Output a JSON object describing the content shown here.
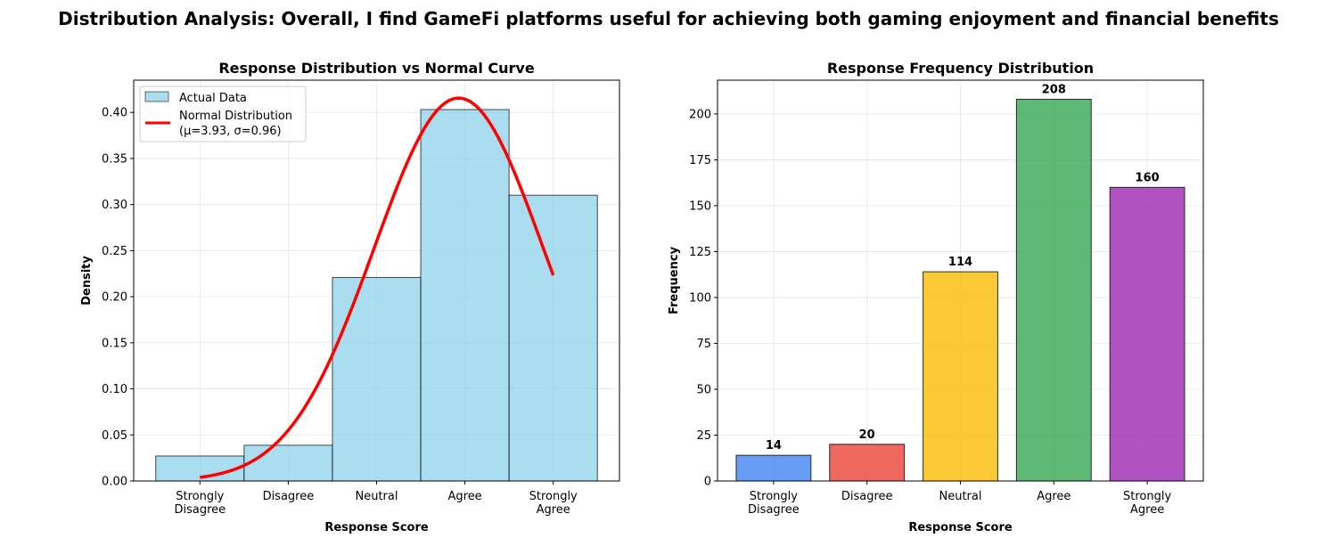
{
  "figure": {
    "suptitle": "Distribution Analysis: Overall, I find GameFi platforms useful for achieving both gaming enjoyment and financial benefits"
  },
  "chart_data": [
    {
      "type": "bar",
      "title": "Response Distribution vs Normal Curve",
      "xlabel": "Response Score",
      "ylabel": "Density",
      "categories": [
        "Strongly\nDisagree",
        "Disagree",
        "Neutral",
        "Agree",
        "Strongly\nAgree"
      ],
      "x": [
        1,
        2,
        3,
        4,
        5
      ],
      "xlim": [
        0.25,
        5.75
      ],
      "ylim": [
        0,
        0.435
      ],
      "yticks": [
        0.0,
        0.05,
        0.1,
        0.15,
        0.2,
        0.25,
        0.3,
        0.35,
        0.4
      ],
      "grid": true,
      "legend": "top-left",
      "series": [
        {
          "name": "Actual Data",
          "kind": "histogram",
          "color": "#87CEEB",
          "edges": [
            0.5,
            1.5,
            2.5,
            3.5,
            4.5,
            5.5
          ],
          "values": [
            0.0271,
            0.0388,
            0.2209,
            0.4031,
            0.3101
          ]
        },
        {
          "name": "Normal Distribution\n(μ=3.93, σ=0.96)",
          "kind": "line",
          "color": "#FF0000",
          "mu": 3.93,
          "sigma": 0.96,
          "x_range": [
            1,
            5
          ]
        }
      ]
    },
    {
      "type": "bar",
      "title": "Response Frequency Distribution",
      "xlabel": "Response Score",
      "ylabel": "Frequency",
      "categories": [
        "Strongly\nDisagree",
        "Disagree",
        "Neutral",
        "Agree",
        "Strongly\nAgree"
      ],
      "values": [
        14,
        20,
        114,
        208,
        160
      ],
      "colors": [
        "#4285F4",
        "#EA4335",
        "#FBBC04",
        "#34A853",
        "#9C27B0"
      ],
      "xlim": [
        0.4,
        5.6
      ],
      "ylim": [
        0,
        218.4
      ],
      "yticks": [
        0,
        25,
        50,
        75,
        100,
        125,
        150,
        175,
        200
      ],
      "grid": true
    }
  ]
}
